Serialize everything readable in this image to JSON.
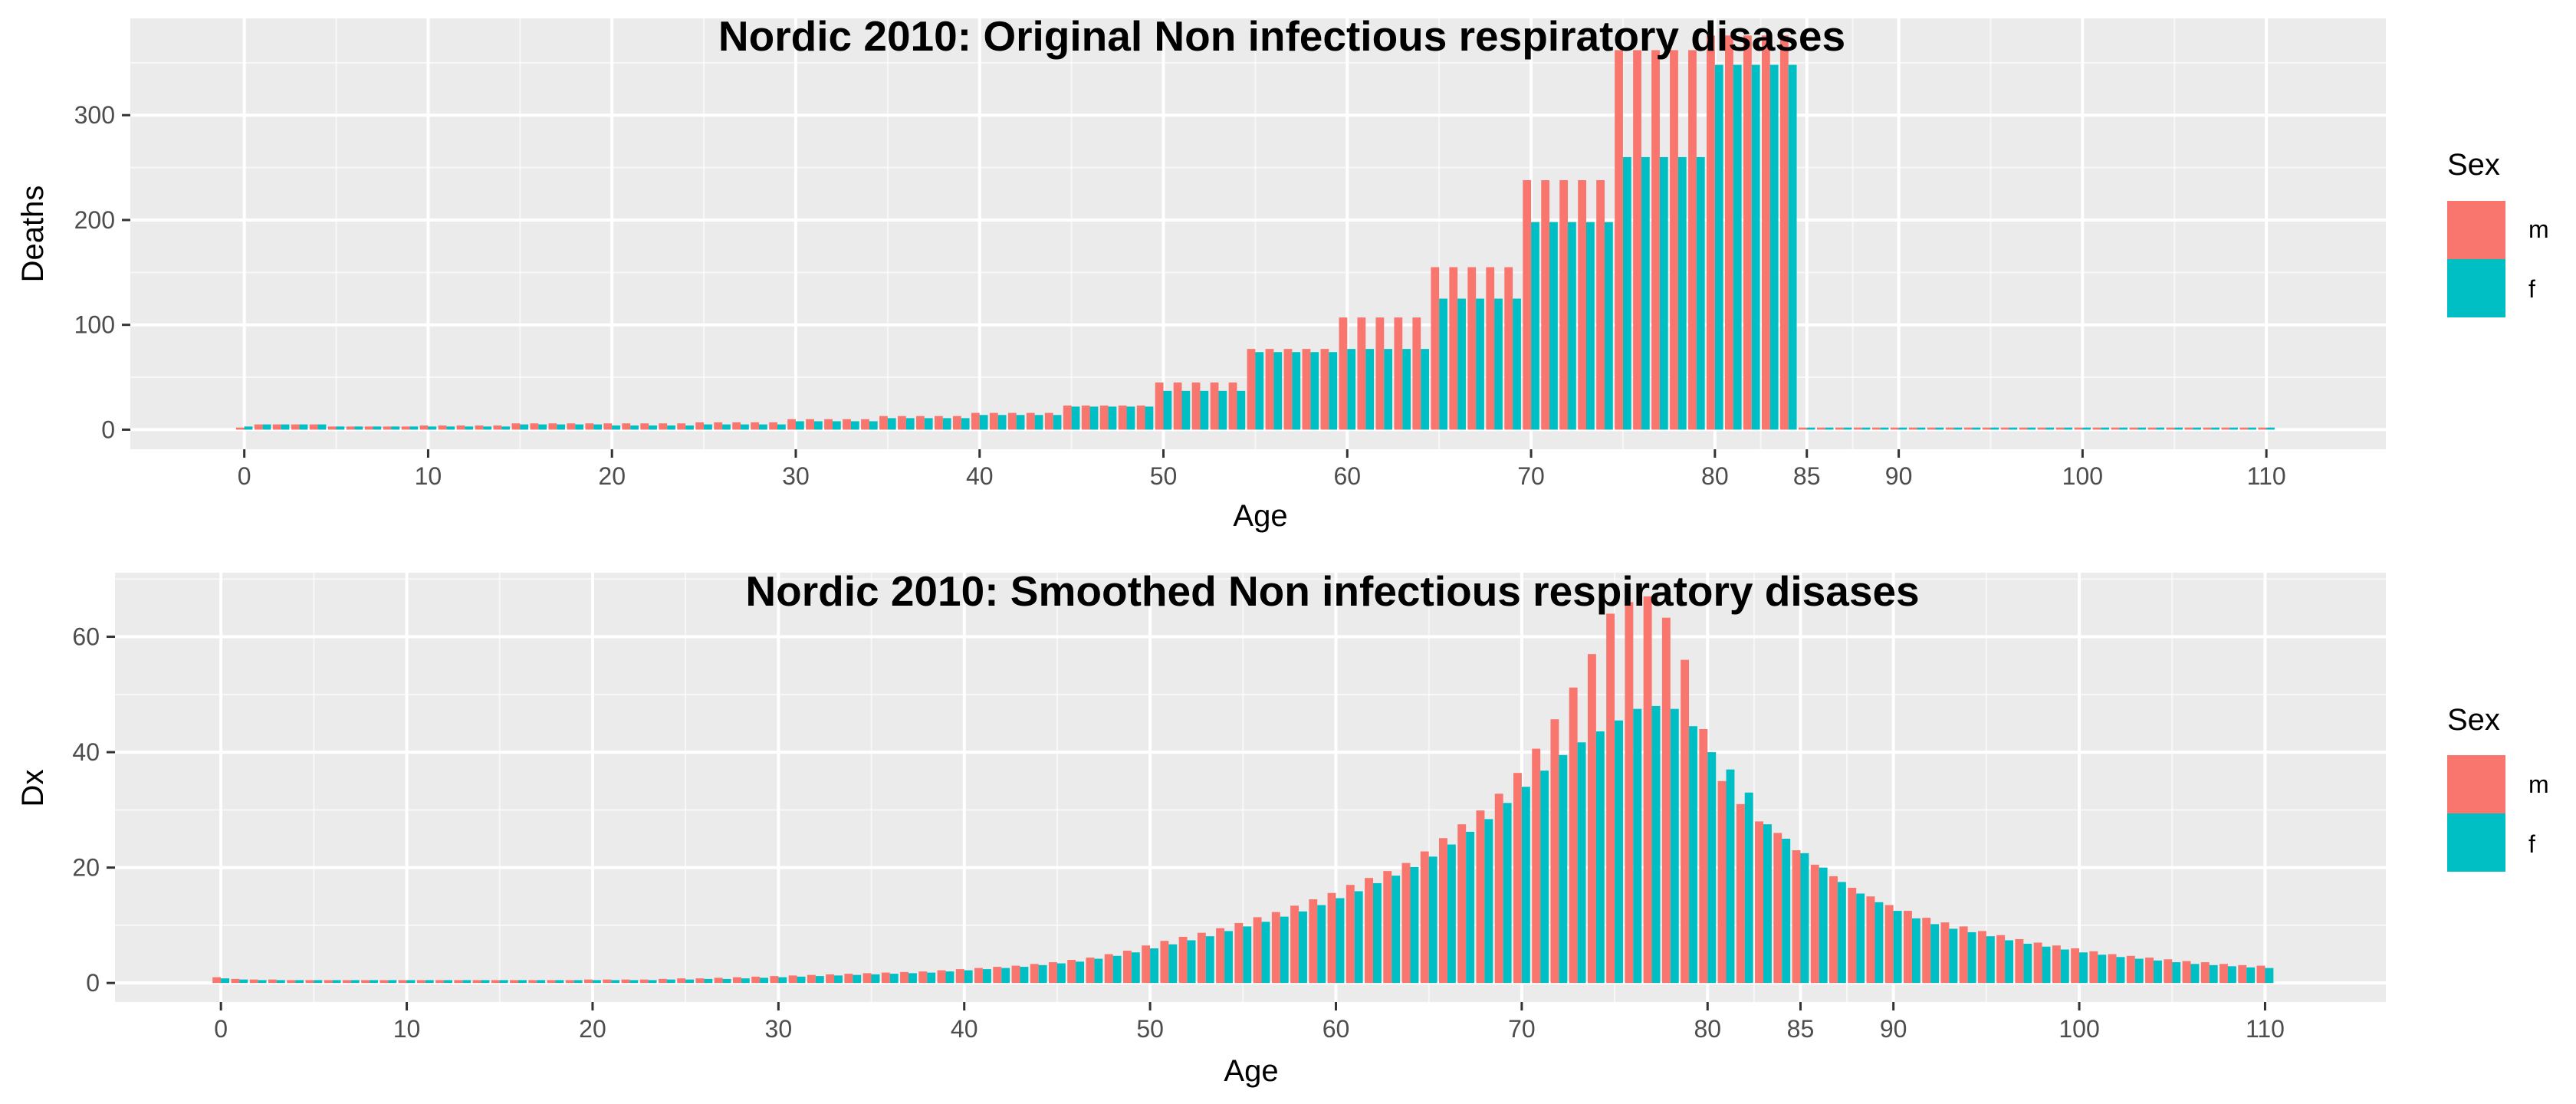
{
  "colors": {
    "panel": "#EBEBEB",
    "grid_major": "#FFFFFF",
    "m": "#F8766D",
    "f": "#00BFC4",
    "tick": "#4D4D4D"
  },
  "chart_data": [
    {
      "type": "bar",
      "title": "Nordic 2010: Original Non infectious respiratory disases",
      "xlabel": "Age",
      "ylabel": "Deaths",
      "xticks": [
        0,
        10,
        20,
        30,
        40,
        50,
        60,
        70,
        80,
        85,
        90,
        100,
        110
      ],
      "yticks": [
        0,
        100,
        200,
        300
      ],
      "xlim": [
        -6.2,
        116.5
      ],
      "ylim": [
        -18.7,
        392.3
      ],
      "legend": {
        "title": "Sex",
        "position": "right",
        "entries": [
          "m",
          "f"
        ]
      },
      "x_start": 0,
      "series": [
        {
          "name": "m",
          "values": [
            2,
            5,
            5,
            5,
            5,
            3,
            3,
            3,
            3,
            3,
            4,
            4,
            4,
            4,
            4,
            6,
            6,
            6,
            6,
            6,
            6,
            6,
            6,
            6,
            6,
            7,
            7,
            7,
            7,
            7,
            10,
            10,
            10,
            10,
            10,
            13,
            13,
            13,
            13,
            13,
            16,
            16,
            16,
            16,
            16,
            23,
            23,
            23,
            23,
            23,
            45,
            45,
            45,
            45,
            45,
            77,
            77,
            77,
            77,
            77,
            107,
            107,
            107,
            107,
            107,
            155,
            155,
            155,
            155,
            155,
            238,
            238,
            238,
            238,
            238,
            362,
            362,
            362,
            362,
            362,
            376,
            376,
            376,
            376,
            376,
            2,
            2,
            2,
            2,
            2,
            2,
            2,
            2,
            2,
            2,
            2,
            2,
            2,
            2,
            2,
            2,
            2,
            2,
            2,
            2,
            2,
            2,
            2,
            2,
            2,
            2
          ]
        },
        {
          "name": "f",
          "values": [
            3,
            5,
            5,
            5,
            5,
            3,
            3,
            3,
            3,
            3,
            3,
            3,
            3,
            3,
            3,
            5,
            5,
            5,
            5,
            5,
            4,
            4,
            4,
            4,
            4,
            5,
            5,
            5,
            5,
            5,
            8,
            8,
            8,
            8,
            8,
            11,
            11,
            11,
            11,
            11,
            14,
            14,
            14,
            14,
            14,
            22,
            22,
            22,
            22,
            22,
            37,
            37,
            37,
            37,
            37,
            74,
            74,
            74,
            74,
            74,
            77,
            77,
            77,
            77,
            77,
            125,
            125,
            125,
            125,
            125,
            198,
            198,
            198,
            198,
            198,
            260,
            260,
            260,
            260,
            260,
            348,
            348,
            348,
            348,
            348,
            2,
            2,
            2,
            2,
            2,
            2,
            2,
            2,
            2,
            2,
            2,
            2,
            2,
            2,
            2,
            2,
            2,
            2,
            2,
            2,
            2,
            2,
            2,
            2,
            2,
            2
          ]
        }
      ]
    },
    {
      "type": "bar",
      "title": "Nordic 2010: Smoothed Non infectious respiratory disases",
      "xlabel": "Age",
      "ylabel": "Dx",
      "xticks": [
        0,
        10,
        20,
        30,
        40,
        50,
        60,
        70,
        80,
        85,
        90,
        100,
        110
      ],
      "yticks": [
        0,
        20,
        40,
        60
      ],
      "xlim": [
        -5.7,
        116.5
      ],
      "ylim": [
        -3.3,
        71.1
      ],
      "legend": {
        "title": "Sex",
        "position": "right",
        "entries": [
          "m",
          "f"
        ]
      },
      "x_start": 0,
      "series": [
        {
          "name": "m",
          "values": [
            1.0,
            0.7,
            0.6,
            0.6,
            0.5,
            0.5,
            0.5,
            0.5,
            0.5,
            0.5,
            0.5,
            0.5,
            0.5,
            0.5,
            0.5,
            0.5,
            0.5,
            0.5,
            0.5,
            0.5,
            0.6,
            0.6,
            0.6,
            0.6,
            0.7,
            0.8,
            0.8,
            0.9,
            1.0,
            1.1,
            1.2,
            1.3,
            1.4,
            1.5,
            1.6,
            1.7,
            1.8,
            1.9,
            2.0,
            2.2,
            2.4,
            2.6,
            2.8,
            3.0,
            3.3,
            3.6,
            4.0,
            4.4,
            5.0,
            5.6,
            6.5,
            7.3,
            8.0,
            8.7,
            9.5,
            10.4,
            11.4,
            12.3,
            13.4,
            14.5,
            15.6,
            17.0,
            18.2,
            19.4,
            20.8,
            22.8,
            25.1,
            27.5,
            29.9,
            32.8,
            36.4,
            40.6,
            45.7,
            51.2,
            57.0,
            64.0,
            66.0,
            67.0,
            63.3,
            56.0,
            44.0,
            35.0,
            31.0,
            28.0,
            26.0,
            23.0,
            20.5,
            18.5,
            16.5,
            15.0,
            13.5,
            12.5,
            11.3,
            10.5,
            9.8,
            9.0,
            8.3,
            7.6,
            7.0,
            6.5,
            6.0,
            5.5,
            5.0,
            4.7,
            4.4,
            4.1,
            3.8,
            3.6,
            3.3,
            3.1,
            3.0
          ]
        },
        {
          "name": "f",
          "values": [
            0.8,
            0.6,
            0.5,
            0.5,
            0.5,
            0.5,
            0.5,
            0.5,
            0.5,
            0.5,
            0.5,
            0.5,
            0.5,
            0.5,
            0.5,
            0.5,
            0.5,
            0.5,
            0.5,
            0.5,
            0.5,
            0.5,
            0.5,
            0.5,
            0.6,
            0.6,
            0.7,
            0.7,
            0.8,
            0.9,
            1.0,
            1.1,
            1.2,
            1.3,
            1.4,
            1.5,
            1.6,
            1.7,
            1.8,
            2.0,
            2.2,
            2.4,
            2.6,
            2.8,
            3.1,
            3.4,
            3.7,
            4.2,
            4.7,
            5.3,
            6.0,
            6.7,
            7.4,
            8.1,
            9.0,
            9.8,
            10.6,
            11.5,
            12.4,
            13.5,
            14.7,
            15.9,
            17.3,
            18.6,
            20.1,
            21.9,
            24.0,
            26.2,
            28.4,
            31.2,
            34.0,
            36.8,
            39.5,
            41.7,
            43.6,
            45.5,
            47.5,
            48.0,
            47.5,
            44.5,
            40.0,
            37.0,
            33.0,
            27.5,
            25.0,
            22.5,
            20.0,
            17.5,
            15.5,
            14.0,
            12.5,
            11.2,
            10.2,
            9.4,
            8.8,
            8.1,
            7.4,
            6.8,
            6.3,
            5.8,
            5.3,
            4.9,
            4.5,
            4.2,
            3.9,
            3.6,
            3.3,
            3.1,
            2.9,
            2.7,
            2.6
          ]
        }
      ]
    }
  ]
}
